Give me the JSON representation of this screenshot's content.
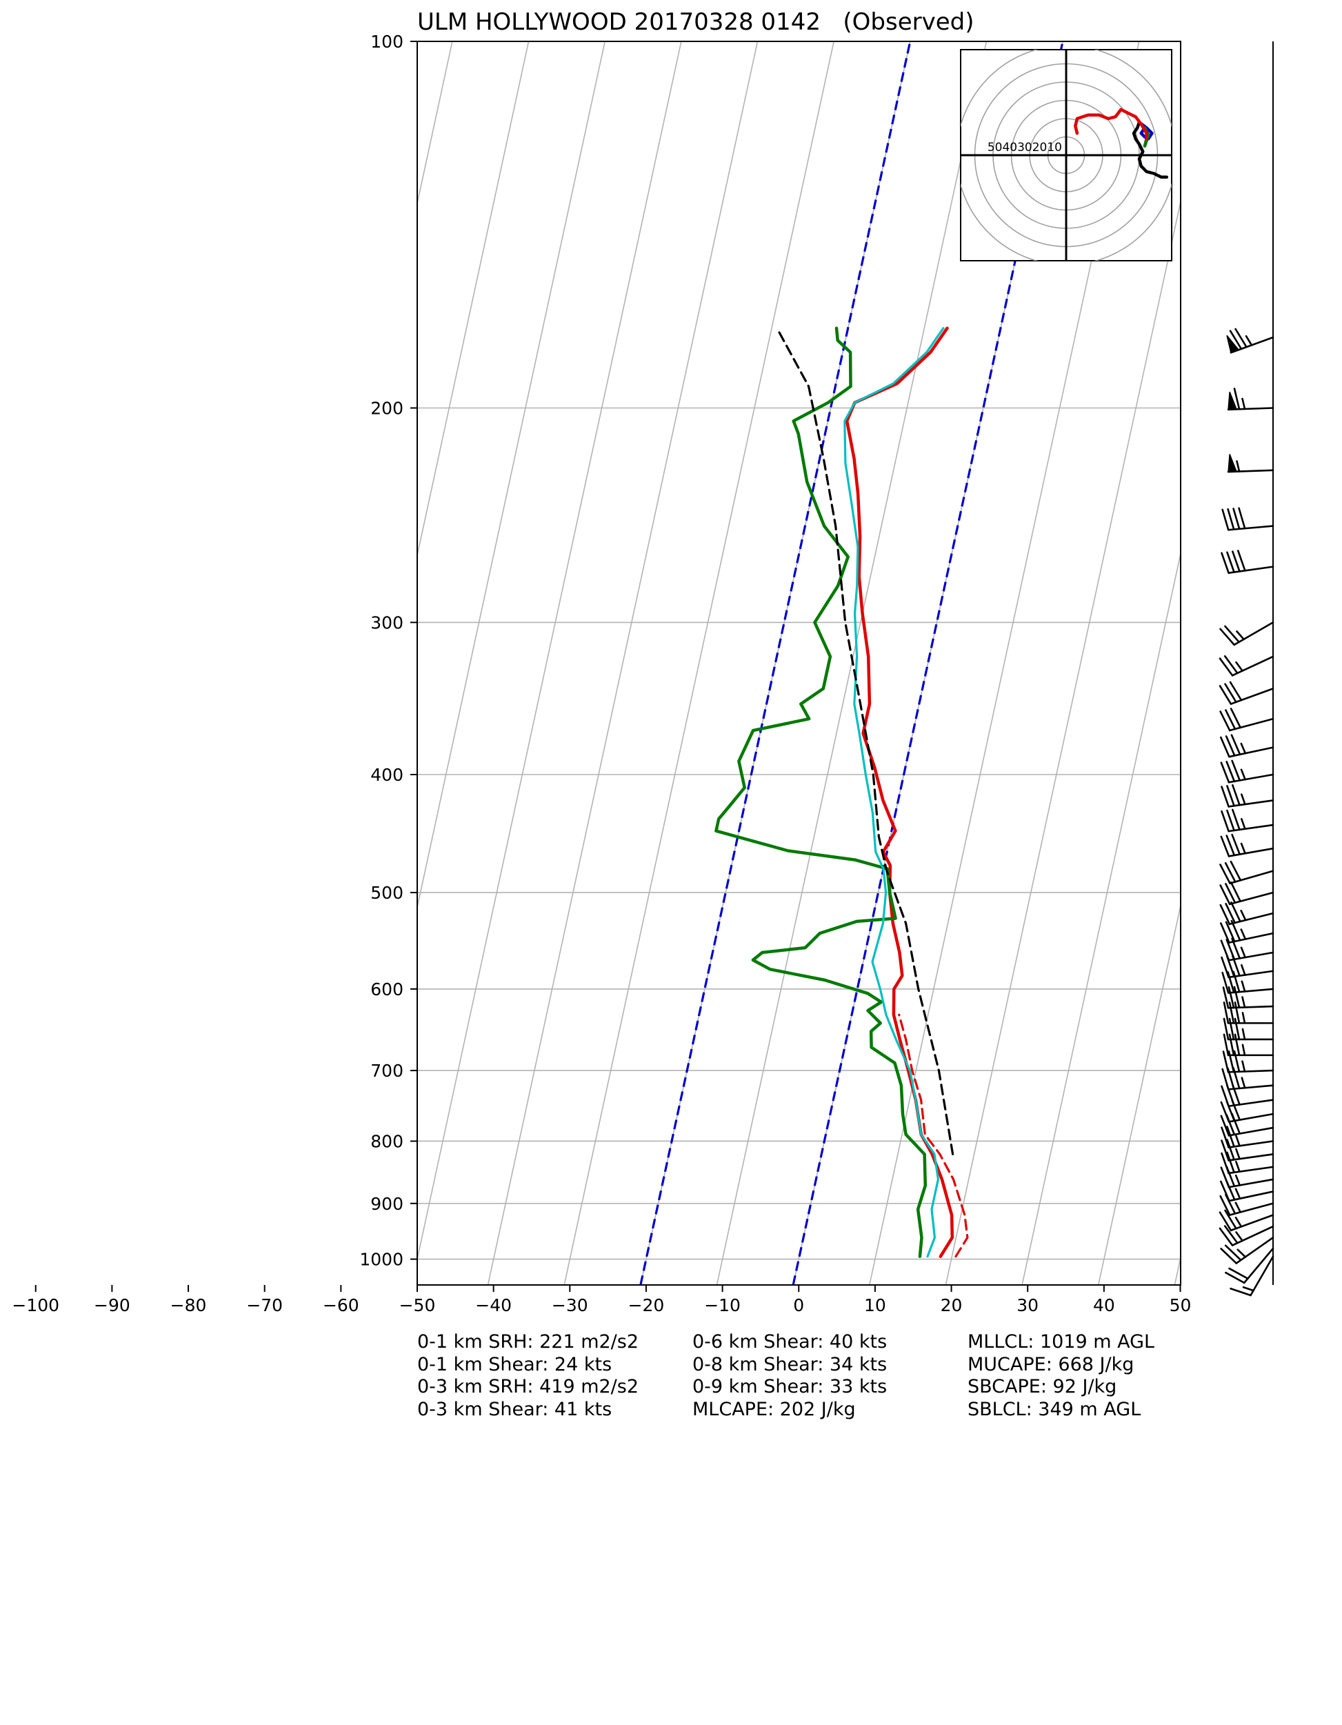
{
  "chart_data": {
    "type": "skew-t",
    "title": "ULM HOLLYWOOD 20170328 0142   (Observed)",
    "xlabel": "",
    "ylabel": "",
    "xlim": [
      -100,
      50
    ],
    "ylim_hpa": [
      1050,
      100
    ],
    "log_pressure_axis": true,
    "skew_dx_per_decade": 34.6,
    "x_ticks": [
      -100,
      -90,
      -80,
      -70,
      -60,
      -50,
      -40,
      -30,
      -20,
      -10,
      0,
      10,
      20,
      30,
      40,
      50
    ],
    "y_ticks": [
      1000,
      900,
      800,
      700,
      600,
      500,
      400,
      300,
      200,
      100
    ],
    "grid": true,
    "colors": {
      "temperature": "#e00000",
      "virtual_temperature": "#e00000",
      "dewpoint": "#007a00",
      "wetbulb": "#00bfbf",
      "parcel": "#000000",
      "wetbulb_zero_lines": "#0000cc",
      "grid": "#b3b3b3"
    },
    "series": [
      {
        "name": "temperature",
        "points": [
          [
            18.5,
            995
          ],
          [
            19.5,
            960
          ],
          [
            18.8,
            920
          ],
          [
            16.5,
            860
          ],
          [
            14.5,
            820
          ],
          [
            12.5,
            790
          ],
          [
            10.8,
            740
          ],
          [
            9.0,
            700
          ],
          [
            7.0,
            660
          ],
          [
            5.5,
            630
          ],
          [
            4.8,
            600
          ],
          [
            5.5,
            585
          ],
          [
            4.5,
            560
          ],
          [
            2.8,
            530
          ],
          [
            1.5,
            500
          ],
          [
            0.8,
            475
          ],
          [
            -0.5,
            463
          ],
          [
            0.5,
            445
          ],
          [
            -2.0,
            420
          ],
          [
            -4.0,
            395
          ],
          [
            -6.5,
            370
          ],
          [
            -6.5,
            350
          ],
          [
            -8.0,
            320
          ],
          [
            -10.0,
            295
          ],
          [
            -11.5,
            275
          ],
          [
            -12.5,
            255
          ],
          [
            -14.0,
            235
          ],
          [
            -15.5,
            220
          ],
          [
            -17.5,
            205
          ],
          [
            -17.0,
            198
          ],
          [
            -12.0,
            191
          ],
          [
            -8.5,
            180
          ],
          [
            -7.0,
            172
          ]
        ]
      },
      {
        "name": "virtual_temperature",
        "style": "dashed",
        "points": [
          [
            20.5,
            995
          ],
          [
            21.5,
            960
          ],
          [
            20.5,
            920
          ],
          [
            18.0,
            860
          ],
          [
            15.5,
            820
          ],
          [
            13.0,
            790
          ],
          [
            11.5,
            740
          ],
          [
            9.5,
            700
          ],
          [
            7.8,
            660
          ],
          [
            6.2,
            630
          ]
        ]
      },
      {
        "name": "dewpoint",
        "points": [
          [
            15.8,
            995
          ],
          [
            15.5,
            960
          ],
          [
            14.2,
            910
          ],
          [
            14.5,
            870
          ],
          [
            13.5,
            820
          ],
          [
            10.5,
            790
          ],
          [
            9.5,
            760
          ],
          [
            8.5,
            720
          ],
          [
            7.0,
            690
          ],
          [
            3.5,
            670
          ],
          [
            3.0,
            650
          ],
          [
            4.0,
            640
          ],
          [
            2.0,
            625
          ],
          [
            3.5,
            615
          ],
          [
            1.5,
            605
          ],
          [
            -4.5,
            590
          ],
          [
            -12.0,
            578
          ],
          [
            -14.5,
            568
          ],
          [
            -13.5,
            560
          ],
          [
            -8.0,
            555
          ],
          [
            -6.5,
            540
          ],
          [
            -2.0,
            528
          ],
          [
            3.0,
            525
          ],
          [
            1.5,
            500
          ],
          [
            0.5,
            478
          ],
          [
            -4.0,
            470
          ],
          [
            -13.0,
            462
          ],
          [
            -23.0,
            445
          ],
          [
            -23.0,
            435
          ],
          [
            -22.0,
            425
          ],
          [
            -20.5,
            410
          ],
          [
            -22.0,
            390
          ],
          [
            -21.0,
            368
          ],
          [
            -14.0,
            360
          ],
          [
            -15.5,
            350
          ],
          [
            -13.0,
            340
          ],
          [
            -13.0,
            320
          ],
          [
            -16.0,
            300
          ],
          [
            -14.0,
            280
          ],
          [
            -13.5,
            265
          ],
          [
            -17.5,
            250
          ],
          [
            -21.0,
            230
          ],
          [
            -23.5,
            210
          ],
          [
            -24.5,
            205
          ],
          [
            -20.5,
            198
          ],
          [
            -18.0,
            192
          ],
          [
            -19.0,
            180
          ],
          [
            -21.0,
            176
          ],
          [
            -21.5,
            172
          ]
        ]
      },
      {
        "name": "wetbulb",
        "points": [
          [
            16.8,
            995
          ],
          [
            17.2,
            960
          ],
          [
            16.0,
            910
          ],
          [
            16.0,
            860
          ],
          [
            14.8,
            820
          ],
          [
            12.5,
            790
          ],
          [
            10.8,
            740
          ],
          [
            9.2,
            700
          ],
          [
            6.5,
            660
          ],
          [
            4.5,
            630
          ],
          [
            3.0,
            600
          ],
          [
            1.2,
            570
          ],
          [
            1.5,
            530
          ],
          [
            1.0,
            500
          ],
          [
            0.0,
            478
          ],
          [
            -1.5,
            463
          ],
          [
            -3.0,
            430
          ],
          [
            -5.0,
            400
          ],
          [
            -7.0,
            370
          ],
          [
            -8.5,
            350
          ],
          [
            -9.5,
            320
          ],
          [
            -11.0,
            295
          ],
          [
            -11.5,
            280
          ],
          [
            -12.5,
            260
          ],
          [
            -14.5,
            240
          ],
          [
            -16.5,
            222
          ],
          [
            -17.8,
            205
          ],
          [
            -17.0,
            198
          ],
          [
            -12.5,
            191
          ],
          [
            -9.0,
            180
          ],
          [
            -7.5,
            172
          ]
        ]
      },
      {
        "name": "parcel",
        "style": "dashed",
        "points": [
          [
            17.2,
            820
          ],
          [
            13.0,
            700
          ],
          [
            8.0,
            600
          ],
          [
            4.5,
            530
          ],
          [
            0.5,
            480
          ],
          [
            -1.5,
            450
          ],
          [
            -4.0,
            400
          ],
          [
            -8.5,
            340
          ],
          [
            -12.0,
            300
          ],
          [
            -16.0,
            250
          ],
          [
            -19.5,
            220
          ],
          [
            -23.5,
            192
          ],
          [
            -29.0,
            173
          ]
        ]
      }
    ],
    "wetbulb_zero_lines_degC": [
      -20,
      0
    ],
    "wind_barbs": [
      {
        "p": 995,
        "speed_kt": 15,
        "dir_deg": 210
      },
      {
        "p": 980,
        "speed_kt": 20,
        "dir_deg": 220
      },
      {
        "p": 960,
        "speed_kt": 25,
        "dir_deg": 235
      },
      {
        "p": 940,
        "speed_kt": 25,
        "dir_deg": 245
      },
      {
        "p": 920,
        "speed_kt": 25,
        "dir_deg": 250
      },
      {
        "p": 900,
        "speed_kt": 25,
        "dir_deg": 255
      },
      {
        "p": 880,
        "speed_kt": 25,
        "dir_deg": 258
      },
      {
        "p": 860,
        "speed_kt": 25,
        "dir_deg": 260
      },
      {
        "p": 840,
        "speed_kt": 25,
        "dir_deg": 262
      },
      {
        "p": 820,
        "speed_kt": 25,
        "dir_deg": 262
      },
      {
        "p": 800,
        "speed_kt": 25,
        "dir_deg": 262
      },
      {
        "p": 780,
        "speed_kt": 30,
        "dir_deg": 260
      },
      {
        "p": 760,
        "speed_kt": 30,
        "dir_deg": 260
      },
      {
        "p": 740,
        "speed_kt": 30,
        "dir_deg": 262
      },
      {
        "p": 720,
        "speed_kt": 35,
        "dir_deg": 265
      },
      {
        "p": 700,
        "speed_kt": 35,
        "dir_deg": 268
      },
      {
        "p": 680,
        "speed_kt": 35,
        "dir_deg": 270
      },
      {
        "p": 660,
        "speed_kt": 35,
        "dir_deg": 270
      },
      {
        "p": 640,
        "speed_kt": 35,
        "dir_deg": 270
      },
      {
        "p": 620,
        "speed_kt": 35,
        "dir_deg": 268
      },
      {
        "p": 600,
        "speed_kt": 35,
        "dir_deg": 265
      },
      {
        "p": 580,
        "speed_kt": 35,
        "dir_deg": 262
      },
      {
        "p": 560,
        "speed_kt": 35,
        "dir_deg": 260
      },
      {
        "p": 540,
        "speed_kt": 35,
        "dir_deg": 258
      },
      {
        "p": 520,
        "speed_kt": 35,
        "dir_deg": 256
      },
      {
        "p": 500,
        "speed_kt": 30,
        "dir_deg": 255
      },
      {
        "p": 480,
        "speed_kt": 30,
        "dir_deg": 254
      },
      {
        "p": 460,
        "speed_kt": 35,
        "dir_deg": 260
      },
      {
        "p": 440,
        "speed_kt": 35,
        "dir_deg": 262
      },
      {
        "p": 420,
        "speed_kt": 35,
        "dir_deg": 262
      },
      {
        "p": 400,
        "speed_kt": 35,
        "dir_deg": 260
      },
      {
        "p": 380,
        "speed_kt": 35,
        "dir_deg": 258
      },
      {
        "p": 360,
        "speed_kt": 30,
        "dir_deg": 255
      },
      {
        "p": 340,
        "speed_kt": 30,
        "dir_deg": 250
      },
      {
        "p": 320,
        "speed_kt": 25,
        "dir_deg": 245
      },
      {
        "p": 300,
        "speed_kt": 25,
        "dir_deg": 240
      },
      {
        "p": 270,
        "speed_kt": 40,
        "dir_deg": 262
      },
      {
        "p": 250,
        "speed_kt": 40,
        "dir_deg": 265
      },
      {
        "p": 225,
        "speed_kt": 55,
        "dir_deg": 268
      },
      {
        "p": 200,
        "speed_kt": 65,
        "dir_deg": 268
      },
      {
        "p": 175,
        "speed_kt": 75,
        "dir_deg": 250
      }
    ],
    "hodograph": {
      "ring_labels": [
        "50",
        "40",
        "30",
        "20",
        "10",
        "10"
      ],
      "ring_values_kt": [
        10,
        20,
        30,
        40,
        50,
        60
      ],
      "segments": [
        {
          "color": "#000000",
          "points": [
            [
              55,
              -12
            ],
            [
              52,
              -12
            ],
            [
              48,
              -10
            ],
            [
              44,
              -9
            ],
            [
              41,
              -6
            ],
            [
              40,
              -2
            ],
            [
              42,
              2
            ],
            [
              40,
              6
            ],
            [
              38,
              9
            ],
            [
              37,
              12
            ],
            [
              39,
              15
            ],
            [
              40,
              18
            ]
          ]
        },
        {
          "color": "#0000cc",
          "points": [
            [
              40,
              18
            ],
            [
              44,
              15
            ],
            [
              47,
              12
            ],
            [
              45,
              9
            ],
            [
              43,
              10
            ],
            [
              41,
              12
            ],
            [
              43,
              15
            ]
          ]
        },
        {
          "color": "#007a00",
          "points": [
            [
              43,
              15
            ],
            [
              44,
              13
            ],
            [
              45,
              11
            ],
            [
              43,
              5
            ],
            [
              44,
              9
            ]
          ]
        },
        {
          "color": "#e00000",
          "points": [
            [
              44,
              9
            ],
            [
              44,
              12
            ],
            [
              41,
              17
            ],
            [
              38,
              21
            ],
            [
              34,
              23
            ],
            [
              30,
              25
            ],
            [
              27,
              21
            ],
            [
              23,
              20
            ],
            [
              18,
              22
            ],
            [
              12,
              22
            ],
            [
              6,
              20
            ],
            [
              5,
              16
            ],
            [
              6,
              12
            ]
          ]
        }
      ]
    },
    "indices": [
      [
        "0-1 km SRH: 221 m2/s2",
        "0-1 km Shear: 24 kts",
        "0-3 km SRH: 419 m2/s2",
        "0-3 km Shear: 41 kts"
      ],
      [
        "0-6 km Shear: 40 kts",
        "0-8 km Shear: 34 kts",
        "0-9 km Shear: 33 kts",
        "MLCAPE: 202 J/kg"
      ],
      [
        "MLLCL: 1019 m AGL",
        "MUCAPE: 668 J/kg",
        "SBCAPE: 92 J/kg",
        "SBLCL: 349 m AGL"
      ]
    ]
  }
}
